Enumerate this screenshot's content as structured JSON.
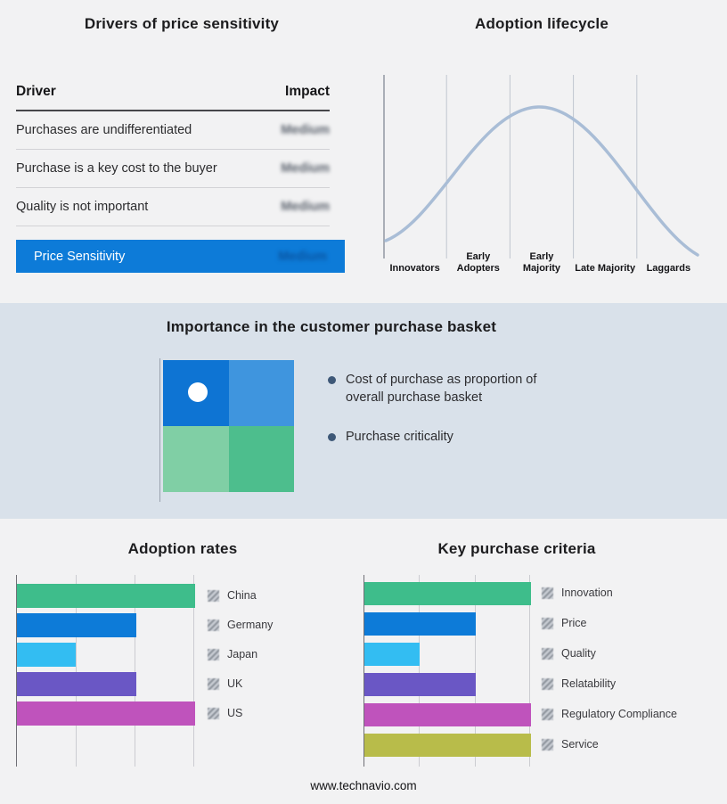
{
  "footer": {
    "url": "www.technavio.com"
  },
  "basket": {
    "title": "Importance in the customer purchase basket",
    "bullets": [
      "Cost of purchase as proportion of overall purchase basket",
      "Purchase criticality"
    ],
    "quadrants": {
      "top_left": "#0e74d3",
      "top_right": "#3f95de",
      "bottom_left": "#80cfa5",
      "bottom_right": "#4dbe8d"
    }
  },
  "chart_data": [
    {
      "type": "table",
      "title": "Drivers of price sensitivity",
      "columns": [
        "Driver",
        "Impact"
      ],
      "rows": [
        [
          "Purchases are undifferentiated",
          "Medium"
        ],
        [
          "Purchase is a key cost to the buyer",
          "Medium"
        ],
        [
          "Quality is not important",
          "Medium"
        ],
        [
          "Price Sensitivity",
          "Medium"
        ]
      ],
      "highlight_row": "Price Sensitivity",
      "highlight_color": "#0d7bd8",
      "note": "impact values appear blurred in source"
    },
    {
      "type": "line",
      "title": "Adoption lifecycle",
      "categories": [
        "Innovators",
        "Early Adopters",
        "Early Majority",
        "Late Majority",
        "Laggards"
      ],
      "shape": "bell curve peaking over Early Majority",
      "color": "#a9bdd6",
      "grid": true
    },
    {
      "type": "bar",
      "title": "Adoption rates",
      "orientation": "horizontal",
      "categories": [
        "China",
        "Germany",
        "Japan",
        "UK",
        "US"
      ],
      "values": [
        100,
        67,
        33,
        67,
        100
      ],
      "colors": [
        "#3ebd8b",
        "#0d7bd8",
        "#33bdf2",
        "#6a57c5",
        "#bf53bc"
      ],
      "xlim": [
        0,
        100
      ],
      "grid": true,
      "legend_position": "right"
    },
    {
      "type": "bar",
      "title": "Key purchase criteria",
      "orientation": "horizontal",
      "categories": [
        "Innovation",
        "Price",
        "Quality",
        "Relatability",
        "Regulatory Compliance",
        "Service"
      ],
      "values": [
        100,
        67,
        33,
        67,
        100,
        100
      ],
      "colors": [
        "#3ebd8b",
        "#0d7bd8",
        "#33bdf2",
        "#6a57c5",
        "#bf53bc",
        "#b8bc4a"
      ],
      "xlim": [
        0,
        100
      ],
      "grid": true,
      "legend_position": "right"
    }
  ]
}
